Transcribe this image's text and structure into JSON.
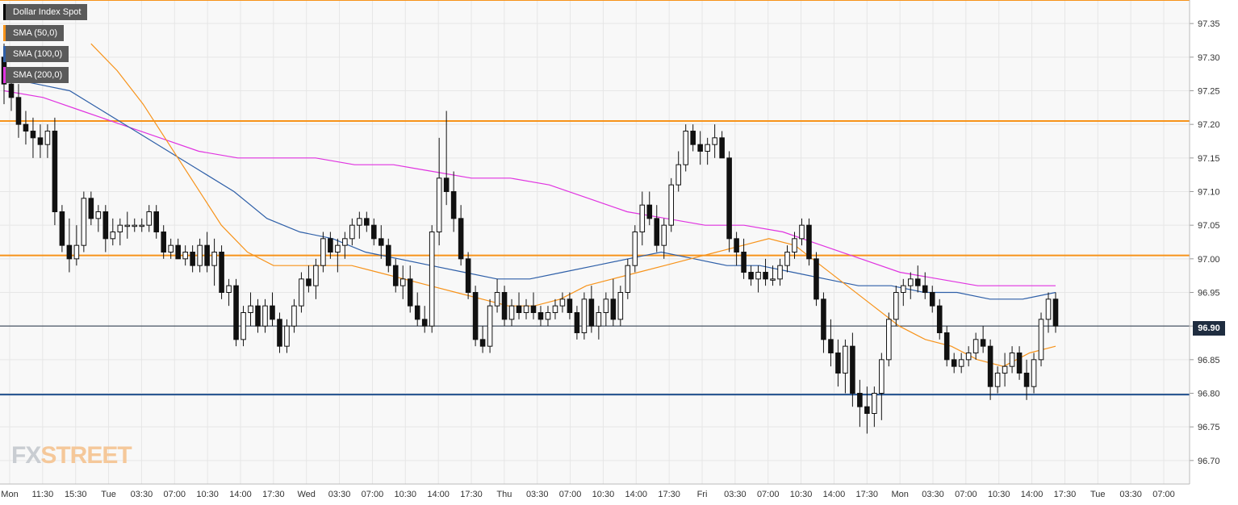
{
  "chart_data": {
    "type": "candlestick",
    "instrument": "Dollar Index Spot",
    "legend": [
      {
        "label": "Dollar Index Spot",
        "color": "#000000"
      },
      {
        "label": "SMA (50,0)",
        "color": "#f7931a"
      },
      {
        "label": "SMA (100,0)",
        "color": "#2e5fa8"
      },
      {
        "label": "SMA (200,0)",
        "color": "#e033e0"
      }
    ],
    "ylim": [
      96.665,
      97.385
    ],
    "y_ticks": [
      "97.35",
      "97.30",
      "97.25",
      "97.20",
      "97.15",
      "97.10",
      "97.05",
      "97.00",
      "96.95",
      "96.90",
      "96.85",
      "96.80",
      "96.75",
      "96.70"
    ],
    "x_ticks": [
      "Mon",
      "11:30",
      "15:30",
      "Tue",
      "03:30",
      "07:00",
      "10:30",
      "14:00",
      "17:30",
      "Wed",
      "03:30",
      "07:00",
      "10:30",
      "14:00",
      "17:30",
      "Thu",
      "03:30",
      "07:00",
      "10:30",
      "14:00",
      "17:30",
      "Fri",
      "03:30",
      "07:00",
      "10:30",
      "14:00",
      "17:30",
      "Mon",
      "03:30",
      "07:00",
      "10:30",
      "14:00",
      "17:30",
      "Tue",
      "03:30",
      "07:00"
    ],
    "current_price": "96.90",
    "current_value": 96.9,
    "horizontal_levels": [
      {
        "value": 97.385,
        "color": "#f7931a"
      },
      {
        "value": 97.205,
        "color": "#f7931a"
      },
      {
        "value": 97.005,
        "color": "#f7931a"
      },
      {
        "value": 96.798,
        "color": "#1f4e8c"
      }
    ],
    "candles": [
      [
        97.3,
        97.32,
        97.23,
        97.26
      ],
      [
        97.26,
        97.28,
        97.22,
        97.24
      ],
      [
        97.24,
        97.26,
        97.18,
        97.2
      ],
      [
        97.2,
        97.22,
        97.17,
        97.19
      ],
      [
        97.19,
        97.21,
        97.15,
        97.18
      ],
      [
        97.18,
        97.2,
        97.15,
        97.17
      ],
      [
        97.17,
        97.2,
        97.15,
        97.19
      ],
      [
        97.19,
        97.21,
        97.05,
        97.07
      ],
      [
        97.07,
        97.08,
        97.01,
        97.02
      ],
      [
        97.02,
        97.06,
        96.98,
        97.0
      ],
      [
        97.0,
        97.05,
        96.99,
        97.02
      ],
      [
        97.02,
        97.1,
        97.01,
        97.09
      ],
      [
        97.09,
        97.1,
        97.05,
        97.06
      ],
      [
        97.06,
        97.08,
        97.04,
        97.07
      ],
      [
        97.07,
        97.08,
        97.01,
        97.03
      ],
      [
        97.03,
        97.06,
        97.02,
        97.04
      ],
      [
        97.04,
        97.06,
        97.02,
        97.05
      ],
      [
        97.05,
        97.07,
        97.03,
        97.05
      ],
      [
        97.05,
        97.06,
        97.04,
        97.05
      ],
      [
        97.05,
        97.06,
        97.04,
        97.05
      ],
      [
        97.05,
        97.08,
        97.04,
        97.07
      ],
      [
        97.07,
        97.08,
        97.03,
        97.04
      ],
      [
        97.04,
        97.05,
        97.0,
        97.01
      ],
      [
        97.01,
        97.03,
        97.0,
        97.02
      ],
      [
        97.02,
        97.03,
        97.0,
        97.0
      ],
      [
        97.0,
        97.02,
        96.99,
        97.01
      ],
      [
        97.01,
        97.02,
        96.98,
        96.99
      ],
      [
        96.99,
        97.03,
        96.98,
        97.02
      ],
      [
        97.02,
        97.04,
        96.98,
        96.99
      ],
      [
        96.99,
        97.03,
        96.96,
        97.01
      ],
      [
        97.01,
        97.02,
        96.94,
        96.95
      ],
      [
        96.95,
        96.97,
        96.93,
        96.96
      ],
      [
        96.96,
        96.97,
        96.87,
        96.88
      ],
      [
        96.88,
        96.93,
        96.87,
        96.92
      ],
      [
        96.92,
        96.95,
        96.9,
        96.93
      ],
      [
        96.93,
        96.94,
        96.89,
        96.9
      ],
      [
        96.9,
        96.94,
        96.89,
        96.93
      ],
      [
        96.93,
        96.95,
        96.9,
        96.91
      ],
      [
        96.91,
        96.92,
        96.86,
        96.87
      ],
      [
        96.87,
        96.91,
        96.86,
        96.9
      ],
      [
        96.9,
        96.94,
        96.89,
        96.93
      ],
      [
        96.93,
        96.98,
        96.92,
        96.97
      ],
      [
        96.97,
        96.99,
        96.95,
        96.96
      ],
      [
        96.96,
        97.0,
        96.94,
        96.99
      ],
      [
        96.99,
        97.04,
        96.98,
        97.03
      ],
      [
        97.03,
        97.04,
        97.0,
        97.01
      ],
      [
        97.01,
        97.03,
        96.98,
        97.02
      ],
      [
        97.02,
        97.04,
        97.0,
        97.03
      ],
      [
        97.03,
        97.06,
        97.02,
        97.05
      ],
      [
        97.05,
        97.07,
        97.03,
        97.06
      ],
      [
        97.06,
        97.07,
        97.04,
        97.05
      ],
      [
        97.05,
        97.06,
        97.02,
        97.03
      ],
      [
        97.03,
        97.05,
        97.0,
        97.02
      ],
      [
        97.02,
        97.03,
        96.98,
        96.99
      ],
      [
        96.99,
        97.0,
        96.95,
        96.96
      ],
      [
        96.96,
        96.99,
        96.94,
        96.97
      ],
      [
        96.97,
        96.99,
        96.92,
        96.93
      ],
      [
        96.93,
        96.95,
        96.9,
        96.91
      ],
      [
        96.91,
        96.93,
        96.89,
        96.9
      ],
      [
        96.9,
        97.05,
        96.89,
        97.04
      ],
      [
        97.04,
        97.18,
        97.02,
        97.12
      ],
      [
        97.12,
        97.22,
        97.08,
        97.1
      ],
      [
        97.1,
        97.13,
        97.04,
        97.06
      ],
      [
        97.06,
        97.08,
        96.99,
        97.0
      ],
      [
        97.0,
        97.01,
        96.94,
        96.95
      ],
      [
        96.95,
        96.96,
        96.87,
        96.88
      ],
      [
        96.88,
        96.9,
        96.86,
        96.87
      ],
      [
        96.87,
        96.94,
        96.86,
        96.93
      ],
      [
        96.93,
        96.97,
        96.92,
        96.95
      ],
      [
        96.95,
        96.96,
        96.9,
        96.91
      ],
      [
        96.91,
        96.94,
        96.9,
        96.93
      ],
      [
        96.93,
        96.95,
        96.91,
        96.92
      ],
      [
        96.92,
        96.94,
        96.91,
        96.93
      ],
      [
        96.93,
        96.95,
        96.91,
        96.92
      ],
      [
        96.92,
        96.93,
        96.9,
        96.91
      ],
      [
        96.91,
        96.93,
        96.9,
        96.92
      ],
      [
        96.92,
        96.94,
        96.91,
        96.93
      ],
      [
        96.93,
        96.95,
        96.92,
        96.94
      ],
      [
        96.94,
        96.95,
        96.91,
        96.92
      ],
      [
        96.92,
        96.93,
        96.88,
        96.89
      ],
      [
        96.89,
        96.95,
        96.88,
        96.94
      ],
      [
        96.94,
        96.96,
        96.89,
        96.9
      ],
      [
        96.9,
        96.93,
        96.88,
        96.92
      ],
      [
        96.92,
        96.95,
        96.9,
        96.94
      ],
      [
        96.94,
        96.97,
        96.9,
        96.91
      ],
      [
        96.91,
        96.96,
        96.9,
        96.95
      ],
      [
        96.95,
        97.0,
        96.94,
        96.99
      ],
      [
        96.99,
        97.05,
        96.98,
        97.04
      ],
      [
        97.04,
        97.1,
        97.02,
        97.08
      ],
      [
        97.08,
        97.1,
        97.05,
        97.06
      ],
      [
        97.06,
        97.08,
        97.01,
        97.02
      ],
      [
        97.02,
        97.06,
        97.0,
        97.05
      ],
      [
        97.05,
        97.12,
        97.04,
        97.11
      ],
      [
        97.11,
        97.16,
        97.1,
        97.14
      ],
      [
        97.14,
        97.2,
        97.13,
        97.19
      ],
      [
        97.19,
        97.2,
        97.16,
        97.17
      ],
      [
        97.17,
        97.19,
        97.14,
        97.16
      ],
      [
        97.16,
        97.18,
        97.14,
        97.17
      ],
      [
        97.17,
        97.2,
        97.15,
        97.18
      ],
      [
        97.18,
        97.19,
        97.15,
        97.15
      ],
      [
        97.15,
        97.16,
        97.01,
        97.03
      ],
      [
        97.03,
        97.04,
        96.99,
        97.01
      ],
      [
        97.01,
        97.03,
        96.97,
        96.98
      ],
      [
        96.98,
        96.99,
        96.96,
        96.97
      ],
      [
        96.97,
        96.99,
        96.95,
        96.98
      ],
      [
        96.98,
        97.0,
        96.96,
        96.97
      ],
      [
        96.97,
        96.99,
        96.96,
        96.97
      ],
      [
        96.97,
        97.0,
        96.96,
        96.99
      ],
      [
        96.99,
        97.02,
        96.98,
        97.01
      ],
      [
        97.01,
        97.04,
        97.0,
        97.03
      ],
      [
        97.03,
        97.06,
        97.02,
        97.05
      ],
      [
        97.05,
        97.06,
        96.99,
        97.0
      ],
      [
        97.0,
        97.01,
        96.93,
        96.94
      ],
      [
        96.94,
        96.95,
        96.86,
        96.88
      ],
      [
        96.88,
        96.91,
        96.84,
        96.86
      ],
      [
        96.86,
        96.88,
        96.81,
        96.83
      ],
      [
        96.83,
        96.88,
        96.8,
        96.87
      ],
      [
        96.87,
        96.89,
        96.78,
        96.8
      ],
      [
        96.8,
        96.82,
        96.75,
        96.78
      ],
      [
        96.78,
        96.81,
        96.74,
        96.77
      ],
      [
        96.77,
        96.81,
        96.75,
        96.8
      ],
      [
        96.8,
        96.86,
        96.76,
        96.85
      ],
      [
        96.85,
        96.92,
        96.84,
        96.91
      ],
      [
        96.91,
        96.96,
        96.9,
        96.95
      ],
      [
        96.95,
        96.97,
        96.93,
        96.96
      ],
      [
        96.96,
        96.98,
        96.94,
        96.97
      ],
      [
        96.97,
        96.99,
        96.95,
        96.96
      ],
      [
        96.96,
        96.98,
        96.94,
        96.95
      ],
      [
        96.95,
        96.96,
        96.92,
        96.93
      ],
      [
        96.93,
        96.94,
        96.88,
        96.89
      ],
      [
        96.89,
        96.9,
        96.84,
        96.85
      ],
      [
        96.85,
        96.86,
        96.83,
        96.84
      ],
      [
        96.84,
        96.86,
        96.83,
        96.85
      ],
      [
        96.85,
        96.87,
        96.84,
        96.86
      ],
      [
        96.86,
        96.89,
        96.85,
        96.88
      ],
      [
        96.88,
        96.9,
        96.86,
        96.87
      ],
      [
        96.87,
        96.88,
        96.79,
        96.81
      ],
      [
        96.81,
        96.84,
        96.8,
        96.83
      ],
      [
        96.83,
        96.86,
        96.81,
        96.84
      ],
      [
        96.84,
        96.87,
        96.83,
        96.86
      ],
      [
        96.86,
        96.87,
        96.82,
        96.83
      ],
      [
        96.83,
        96.85,
        96.79,
        96.81
      ],
      [
        96.81,
        96.86,
        96.8,
        96.85
      ],
      [
        96.85,
        96.92,
        96.84,
        96.91
      ],
      [
        96.91,
        96.95,
        96.89,
        96.94
      ],
      [
        96.94,
        96.95,
        96.89,
        96.9
      ]
    ],
    "sma_50": [
      97.32,
      97.28,
      97.23,
      97.17,
      97.11,
      97.05,
      97.01,
      96.99,
      96.99,
      96.99,
      96.99,
      96.98,
      96.97,
      96.96,
      96.95,
      96.94,
      96.93,
      96.93,
      96.94,
      96.96,
      96.97,
      96.98,
      96.99,
      97.0,
      97.01,
      97.02,
      97.03,
      97.02,
      96.99,
      96.96,
      96.93,
      96.9,
      96.88,
      96.87,
      96.85,
      96.84,
      96.86,
      96.87
    ],
    "sma_100": [
      97.27,
      97.26,
      97.25,
      97.22,
      97.19,
      97.16,
      97.13,
      97.1,
      97.06,
      97.04,
      97.03,
      97.01,
      97.0,
      96.99,
      96.98,
      96.97,
      96.97,
      96.98,
      96.99,
      97.0,
      97.01,
      97.0,
      96.99,
      96.99,
      96.98,
      96.97,
      96.96,
      96.96,
      96.95,
      96.95,
      96.94,
      96.94,
      96.95
    ],
    "sma_200": [
      97.25,
      97.24,
      97.22,
      97.2,
      97.18,
      97.16,
      97.15,
      97.15,
      97.15,
      97.14,
      97.14,
      97.13,
      97.12,
      97.12,
      97.11,
      97.09,
      97.07,
      97.06,
      97.05,
      97.05,
      97.04,
      97.02,
      97.0,
      96.98,
      96.97,
      96.96,
      96.96,
      96.96
    ]
  }
}
